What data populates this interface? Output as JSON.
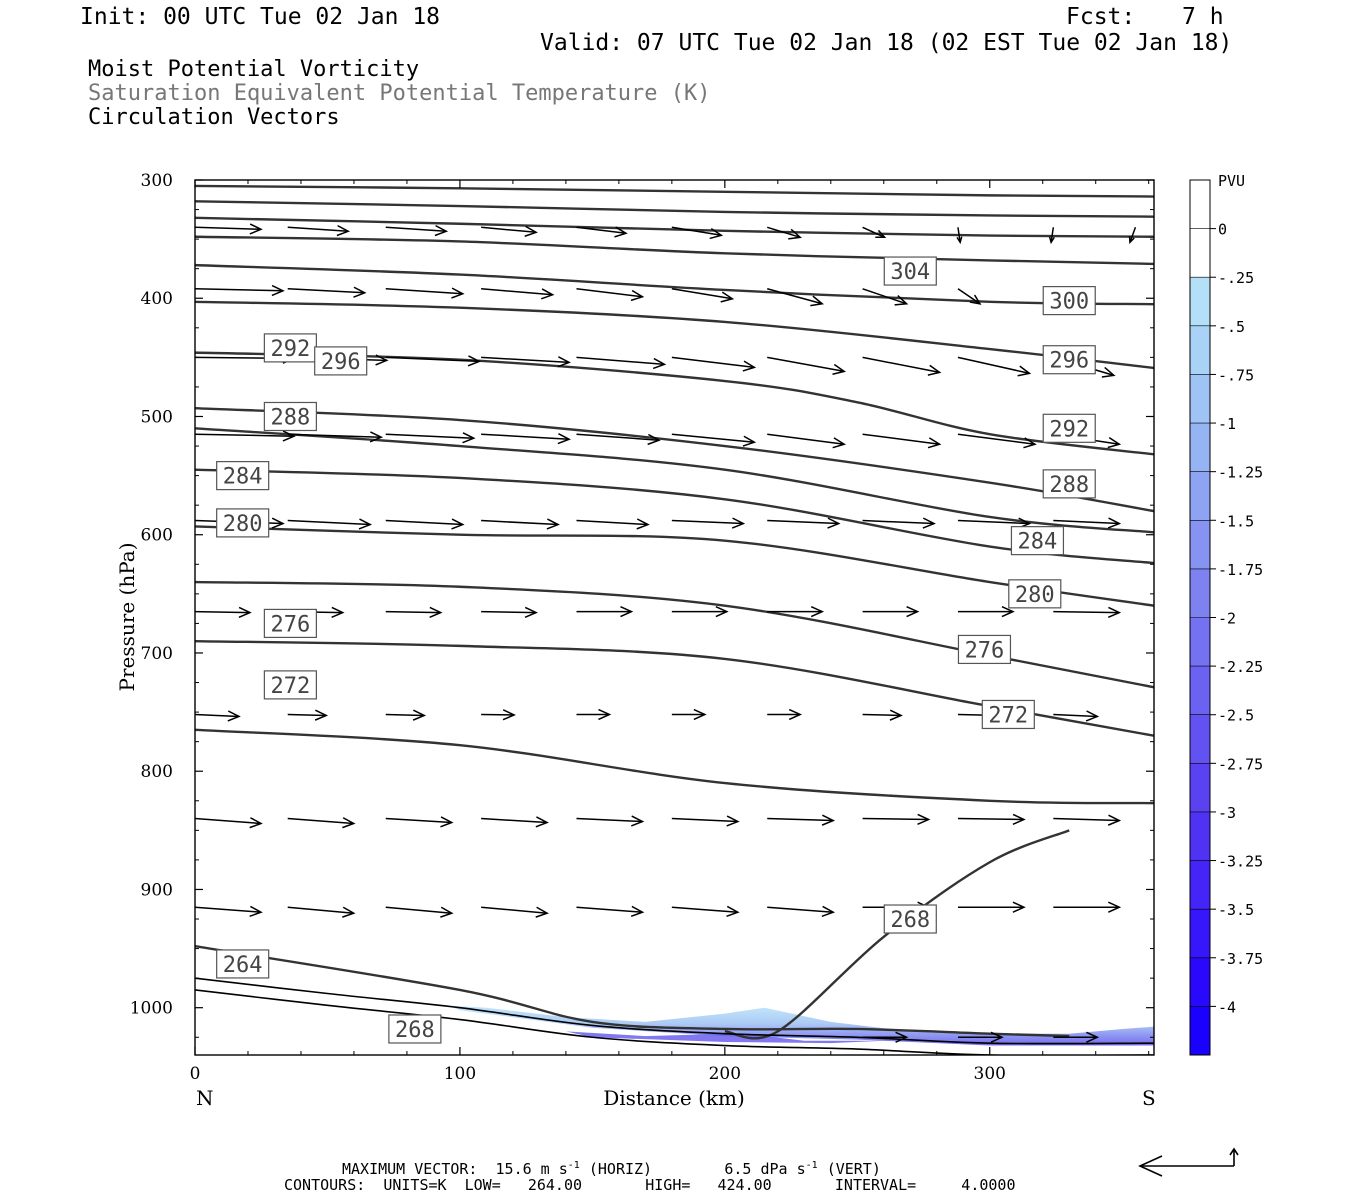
{
  "header": {
    "init": "Init: 00 UTC Tue 02 Jan 18",
    "fcst_label": "Fcst:",
    "fcst_value": "7 h",
    "valid": "Valid: 07 UTC Tue 02 Jan 18 (02 EST Tue 02 Jan 18)"
  },
  "fields": {
    "line1": "Moist Potential Vorticity",
    "line2": "Saturation Equivalent Potential Temperature (K)",
    "line3": "Circulation Vectors"
  },
  "footer": {
    "max_vector_label": "MAXIMUM VECTOR:",
    "horiz_value": "15.6 m s",
    "horiz_exp": "-1",
    "horiz_tag": "(HORIZ)",
    "vert_value": "6.5 dPa s",
    "vert_exp": "-1",
    "vert_tag": "(VERT)",
    "contours": "CONTOURS:  UNITS=K  LOW=   264.00       HIGH=   424.00       INTERVAL=     4.0000"
  },
  "chart_data": {
    "type": "cross-section",
    "xlabel": "Distance (km)",
    "ylabel": "Pressure (hPa)",
    "xlim": [
      0,
      362
    ],
    "ylim": [
      300,
      1040
    ],
    "y_scale": "linear-inverted",
    "x_ticks": [
      "0",
      "100",
      "200",
      "300"
    ],
    "y_ticks": [
      "300",
      "400",
      "500",
      "600",
      "700",
      "800",
      "900",
      "1000"
    ],
    "x_end_labels": {
      "left": "N",
      "right": "S"
    },
    "colorbar": {
      "title": "PVU",
      "labels": [
        "0",
        "-.25",
        "-.5",
        "-.75",
        "-1",
        "-1.25",
        "-1.5",
        "-1.75",
        "-2",
        "-2.25",
        "-2.5",
        "-2.75",
        "-3",
        "-3.25",
        "-3.5",
        "-3.75",
        "-4"
      ],
      "colors": [
        "#ffffff",
        "#ffffff",
        "#b3e0f8",
        "#a8d2f6",
        "#9ec3f4",
        "#96b3f3",
        "#8ea3f2",
        "#8693f1",
        "#7e82f1",
        "#7572f1",
        "#6c62f1",
        "#6352f2",
        "#5a42f3",
        "#5032f5",
        "#4424f7",
        "#3716fa",
        "#2a08fc",
        "#1a00ff"
      ]
    },
    "contour_labels": [
      "264",
      "268",
      "268",
      "272",
      "272",
      "276",
      "276",
      "280",
      "280",
      "284",
      "284",
      "288",
      "288",
      "292",
      "292",
      "296",
      "296",
      "300",
      "304"
    ],
    "theta_e_contours": [
      {
        "x": [
          0,
          100,
          200,
          300,
          362
        ],
        "p": [
          305,
          307,
          310,
          313,
          314
        ]
      },
      {
        "x": [
          0,
          100,
          200,
          300,
          362
        ],
        "p": [
          318,
          322,
          327,
          330,
          331
        ]
      },
      {
        "x": [
          0,
          100,
          200,
          300,
          362
        ],
        "p": [
          332,
          337,
          343,
          347,
          348
        ]
      },
      {
        "x": [
          0,
          100,
          200,
          300,
          362
        ],
        "p": [
          348,
          352,
          362,
          368,
          371
        ]
      },
      {
        "x": [
          0,
          100,
          200,
          300,
          362
        ],
        "p": [
          372,
          380,
          393,
          403,
          405
        ]
      },
      {
        "x": [
          0,
          100,
          200,
          300,
          362
        ],
        "p": [
          403,
          408,
          420,
          443,
          459
        ]
      },
      {
        "x": [
          0,
          100,
          200,
          250,
          300,
          362
        ],
        "p": [
          446,
          452,
          470,
          488,
          515,
          532
        ]
      },
      {
        "x": [
          0,
          100,
          200,
          300,
          362
        ],
        "p": [
          493,
          503,
          525,
          556,
          580
        ]
      },
      {
        "x": [
          0,
          100,
          200,
          300,
          362
        ],
        "p": [
          510,
          525,
          545,
          585,
          598
        ]
      },
      {
        "x": [
          0,
          100,
          200,
          300,
          362
        ],
        "p": [
          545,
          552,
          570,
          610,
          624
        ]
      },
      {
        "x": [
          0,
          100,
          200,
          300,
          362
        ],
        "p": [
          593,
          600,
          605,
          640,
          660
        ]
      },
      {
        "x": [
          0,
          100,
          200,
          300,
          362
        ],
        "p": [
          640,
          644,
          660,
          702,
          729
        ]
      },
      {
        "x": [
          0,
          100,
          200,
          300,
          362
        ],
        "p": [
          690,
          694,
          705,
          745,
          770
        ]
      },
      {
        "x": [
          0,
          100,
          200,
          300,
          362
        ],
        "p": [
          765,
          778,
          810,
          825,
          827
        ]
      },
      {
        "x": [
          0,
          100,
          150,
          200,
          250,
          300,
          330
        ],
        "p": [
          948,
          985,
          1012,
          1018,
          1018,
          1022,
          1024
        ]
      },
      {
        "x": [
          330,
          300,
          260,
          220,
          200
        ],
        "p": [
          850,
          877,
          940,
          1020,
          1020
        ]
      }
    ],
    "surface_pressure": {
      "x": [
        0,
        50,
        100,
        150,
        200,
        250,
        300,
        362
      ],
      "p": [
        975,
        988,
        1000,
        1015,
        1022,
        1025,
        1030,
        1030
      ]
    },
    "vectors": [
      {
        "p": 340,
        "x": [
          0,
          35,
          72,
          108,
          144,
          180,
          216,
          252,
          288,
          324,
          355
        ],
        "u": [
          6,
          5.5,
          5.5,
          5,
          4.5,
          4.5,
          3,
          2,
          0.2,
          -0.2,
          -0.5
        ],
        "w": [
          0.2,
          0.4,
          0.4,
          0.5,
          0.6,
          0.8,
          1,
          1,
          1.5,
          1.5,
          1.5
        ]
      },
      {
        "p": 392,
        "x": [
          0,
          35,
          72,
          108,
          144,
          180,
          216,
          252,
          288,
          324
        ],
        "u": [
          8,
          7,
          7,
          6.5,
          6,
          5.5,
          5,
          4,
          2,
          1.5
        ],
        "w": [
          0.2,
          0.4,
          0.5,
          0.6,
          0.8,
          1,
          1.5,
          1.5,
          1.5,
          1.5
        ]
      },
      {
        "p": 450,
        "x": [
          0,
          35,
          72,
          108,
          144,
          180,
          216,
          252,
          288,
          324
        ],
        "u": [
          9,
          9,
          8.5,
          8,
          8,
          7.5,
          7,
          7,
          6.5,
          5.5
        ],
        "w": [
          0.1,
          0.3,
          0.4,
          0.5,
          0.7,
          1,
          1.4,
          1.5,
          1.6,
          1.8
        ]
      },
      {
        "p": 515,
        "x": [
          0,
          35,
          72,
          108,
          144,
          180,
          216,
          252,
          288,
          324
        ],
        "u": [
          9,
          8.5,
          8,
          8,
          7.5,
          7.5,
          7,
          7,
          7,
          6
        ],
        "w": [
          0.2,
          0.3,
          0.4,
          0.5,
          0.6,
          0.8,
          1,
          1,
          1,
          1
        ]
      },
      {
        "p": 588,
        "x": [
          0,
          35,
          72,
          108,
          144,
          180,
          216,
          252,
          288,
          324
        ],
        "u": [
          8,
          7.5,
          7,
          7,
          6.5,
          6.5,
          6.5,
          6.5,
          6.5,
          6
        ],
        "w": [
          0.3,
          0.4,
          0.4,
          0.4,
          0.4,
          0.3,
          0.3,
          0.3,
          0.3,
          0.3
        ]
      },
      {
        "p": 665,
        "x": [
          0,
          35,
          72,
          108,
          144,
          180,
          216,
          252,
          288,
          324
        ],
        "u": [
          5,
          5,
          5,
          5,
          5,
          5,
          5,
          5,
          5,
          6
        ],
        "w": [
          0.1,
          0.1,
          0.1,
          0.1,
          0,
          0,
          0,
          0,
          0,
          0.1
        ]
      },
      {
        "p": 752,
        "x": [
          0,
          35,
          72,
          108,
          144,
          180,
          216,
          252,
          288,
          324
        ],
        "u": [
          4,
          3.5,
          3.5,
          3,
          3,
          3,
          3,
          3.5,
          4,
          4
        ],
        "w": [
          0.2,
          0.1,
          0.1,
          0.05,
          0,
          0,
          0,
          0.1,
          0.1,
          0.2
        ]
      },
      {
        "p": 840,
        "x": [
          0,
          35,
          72,
          108,
          144,
          180,
          216,
          252,
          288,
          324
        ],
        "u": [
          6,
          6,
          6,
          6,
          6,
          6,
          6,
          6,
          6,
          6
        ],
        "w": [
          0.5,
          0.5,
          0.4,
          0.4,
          0.3,
          0.3,
          0.2,
          0.1,
          0.1,
          0.2
        ]
      },
      {
        "p": 915,
        "x": [
          0,
          35,
          72,
          108,
          144,
          180,
          216,
          252,
          288,
          324
        ],
        "u": [
          6,
          6,
          6,
          6,
          6,
          6,
          6,
          6,
          6,
          6
        ],
        "w": [
          0.5,
          0.6,
          0.6,
          0.6,
          0.5,
          0.5,
          0.5,
          0,
          0,
          0
        ]
      },
      {
        "p": 1025,
        "x": [
          252,
          288,
          324
        ],
        "u": [
          4,
          4,
          4
        ],
        "w": [
          0,
          0,
          0
        ]
      }
    ]
  }
}
